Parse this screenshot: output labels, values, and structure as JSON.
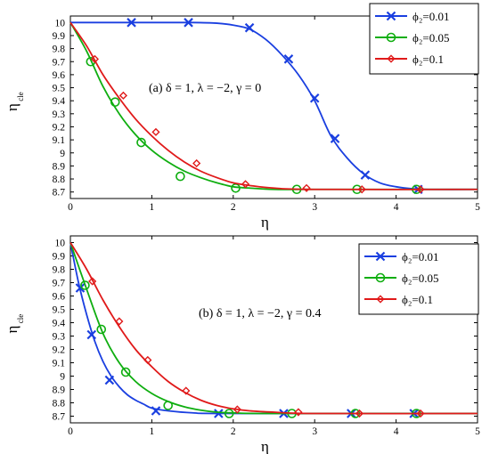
{
  "chart_data": [
    {
      "type": "line",
      "panel": "a",
      "annotation": "(a) δ = 1, λ = −2, γ = 0",
      "xlabel": "η",
      "ylabel": "η",
      "ylabel_sub": "cle",
      "xlim": [
        0,
        5
      ],
      "ylim": [
        8.65,
        10.05
      ],
      "xticks": [
        "0",
        "1",
        "2",
        "3",
        "4",
        "5"
      ],
      "yticks": [
        "8.7",
        "8.8",
        "8.9",
        "9",
        "9.1",
        "9.2",
        "9.3",
        "9.4",
        "9.5",
        "9.6",
        "9.7",
        "9.8",
        "9.9",
        "10"
      ],
      "legend_position": "top-right",
      "series": [
        {
          "name": "ϕ₂=0.01",
          "legend_text": "ϕ2=0.01",
          "color": "#1a3fe0",
          "marker": "x",
          "curve": {
            "x": [
              0,
              0.5,
              1.0,
              1.5,
              1.8,
              2.0,
              2.2,
              2.4,
              2.6,
              2.8,
              3.0,
              3.2,
              3.4,
              3.6,
              3.8,
              4.0,
              4.2,
              4.4,
              5.0
            ],
            "y": [
              10.0,
              10.0,
              10.0,
              10.0,
              9.995,
              9.98,
              9.95,
              9.87,
              9.75,
              9.6,
              9.4,
              9.13,
              8.96,
              8.84,
              8.77,
              8.74,
              8.725,
              8.72,
              8.72
            ]
          },
          "markers": {
            "x": [
              0.75,
              1.45,
              2.2,
              2.68,
              3.0,
              3.25,
              3.62,
              4.27
            ],
            "y": [
              10.0,
              10.0,
              9.96,
              9.72,
              9.42,
              9.11,
              8.83,
              8.72
            ]
          }
        },
        {
          "name": "ϕ₂=0.05",
          "legend_text": "ϕ2=0.05",
          "color": "#0fae10",
          "marker": "o",
          "curve": {
            "x": [
              0,
              0.2,
              0.4,
              0.6,
              0.8,
              1.0,
              1.2,
              1.4,
              1.6,
              1.8,
              2.0,
              2.2,
              2.5,
              3.0,
              5.0
            ],
            "y": [
              10.0,
              9.78,
              9.51,
              9.3,
              9.14,
              9.02,
              8.93,
              8.86,
              8.81,
              8.77,
              8.74,
              8.73,
              8.72,
              8.72,
              8.72
            ]
          },
          "markers": {
            "x": [
              0.25,
              0.55,
              0.87,
              1.35,
              2.03,
              2.78,
              3.52,
              4.25
            ],
            "y": [
              9.7,
              9.39,
              9.08,
              8.82,
              8.73,
              8.72,
              8.72,
              8.72
            ]
          }
        },
        {
          "name": "ϕ₂=0.1",
          "legend_text": "ϕ2=0.1",
          "color": "#e01a1a",
          "marker": "diamond",
          "curve": {
            "x": [
              0,
              0.2,
              0.4,
              0.6,
              0.8,
              1.0,
              1.2,
              1.4,
              1.6,
              1.8,
              2.0,
              2.2,
              2.5,
              3.0,
              5.0
            ],
            "y": [
              10.0,
              9.82,
              9.6,
              9.42,
              9.26,
              9.13,
              9.02,
              8.93,
              8.86,
              8.81,
              8.77,
              8.75,
              8.73,
              8.72,
              8.72
            ]
          },
          "markers": {
            "x": [
              0.3,
              0.65,
              1.05,
              1.55,
              2.15,
              2.9,
              3.58,
              4.3
            ],
            "y": [
              9.72,
              9.44,
              9.16,
              8.92,
              8.76,
              8.73,
              8.72,
              8.72
            ]
          }
        }
      ]
    },
    {
      "type": "line",
      "panel": "b",
      "annotation": "(b) δ = 1, λ = −2, γ = 0.4",
      "xlabel": "η",
      "ylabel": "η",
      "ylabel_sub": "cle",
      "xlim": [
        0,
        5
      ],
      "ylim": [
        8.65,
        10.05
      ],
      "xticks": [
        "0",
        "1",
        "2",
        "3",
        "4",
        "5"
      ],
      "yticks": [
        "8.7",
        "8.8",
        "8.9",
        "9",
        "9.1",
        "9.2",
        "9.3",
        "9.4",
        "9.5",
        "9.6",
        "9.7",
        "9.8",
        "9.9",
        "10"
      ],
      "legend_position": "top-right",
      "series": [
        {
          "name": "ϕ₂=0.01",
          "legend_text": "ϕ2=0.01",
          "color": "#1a3fe0",
          "marker": "x",
          "curve": {
            "x": [
              0,
              0.1,
              0.2,
              0.3,
              0.4,
              0.5,
              0.6,
              0.7,
              0.8,
              0.9,
              1.0,
              1.2,
              1.5,
              2.0,
              5.0
            ],
            "y": [
              10.0,
              9.7,
              9.46,
              9.26,
              9.11,
              9.0,
              8.92,
              8.86,
              8.82,
              8.79,
              8.76,
              8.74,
              8.725,
              8.72,
              8.72
            ]
          },
          "markers": {
            "x": [
              0.12,
              0.26,
              0.48,
              1.05,
              1.82,
              2.62,
              3.45,
              4.22
            ],
            "y": [
              9.66,
              9.31,
              8.97,
              8.74,
              8.72,
              8.72,
              8.72,
              8.72
            ]
          }
        },
        {
          "name": "ϕ₂=0.05",
          "legend_text": "ϕ2=0.05",
          "color": "#0fae10",
          "marker": "o",
          "curve": {
            "x": [
              0,
              0.2,
              0.4,
              0.6,
              0.8,
              1.0,
              1.2,
              1.4,
              1.6,
              1.8,
              2.0,
              2.5,
              5.0
            ],
            "y": [
              10.0,
              9.65,
              9.32,
              9.1,
              8.96,
              8.87,
              8.81,
              8.77,
              8.745,
              8.73,
              8.725,
              8.72,
              8.72
            ]
          },
          "markers": {
            "x": [
              0.18,
              0.38,
              0.68,
              1.2,
              1.95,
              2.72,
              3.5,
              4.25
            ],
            "y": [
              9.68,
              9.35,
              9.03,
              8.78,
              8.72,
              8.72,
              8.72,
              8.72
            ]
          }
        },
        {
          "name": "ϕ₂=0.1",
          "legend_text": "ϕ2=0.1",
          "color": "#e01a1a",
          "marker": "diamond",
          "curve": {
            "x": [
              0,
              0.2,
              0.4,
              0.6,
              0.8,
              1.0,
              1.2,
              1.4,
              1.6,
              1.8,
              2.0,
              2.2,
              2.5,
              3.0,
              5.0
            ],
            "y": [
              10.0,
              9.8,
              9.57,
              9.37,
              9.2,
              9.07,
              8.96,
              8.88,
              8.82,
              8.78,
              8.755,
              8.74,
              8.73,
              8.72,
              8.72
            ]
          },
          "markers": {
            "x": [
              0.27,
              0.6,
              0.95,
              1.42,
              2.05,
              2.8,
              3.55,
              4.3
            ],
            "y": [
              9.71,
              9.41,
              9.12,
              8.89,
              8.75,
              8.73,
              8.72,
              8.72
            ]
          }
        }
      ]
    }
  ]
}
